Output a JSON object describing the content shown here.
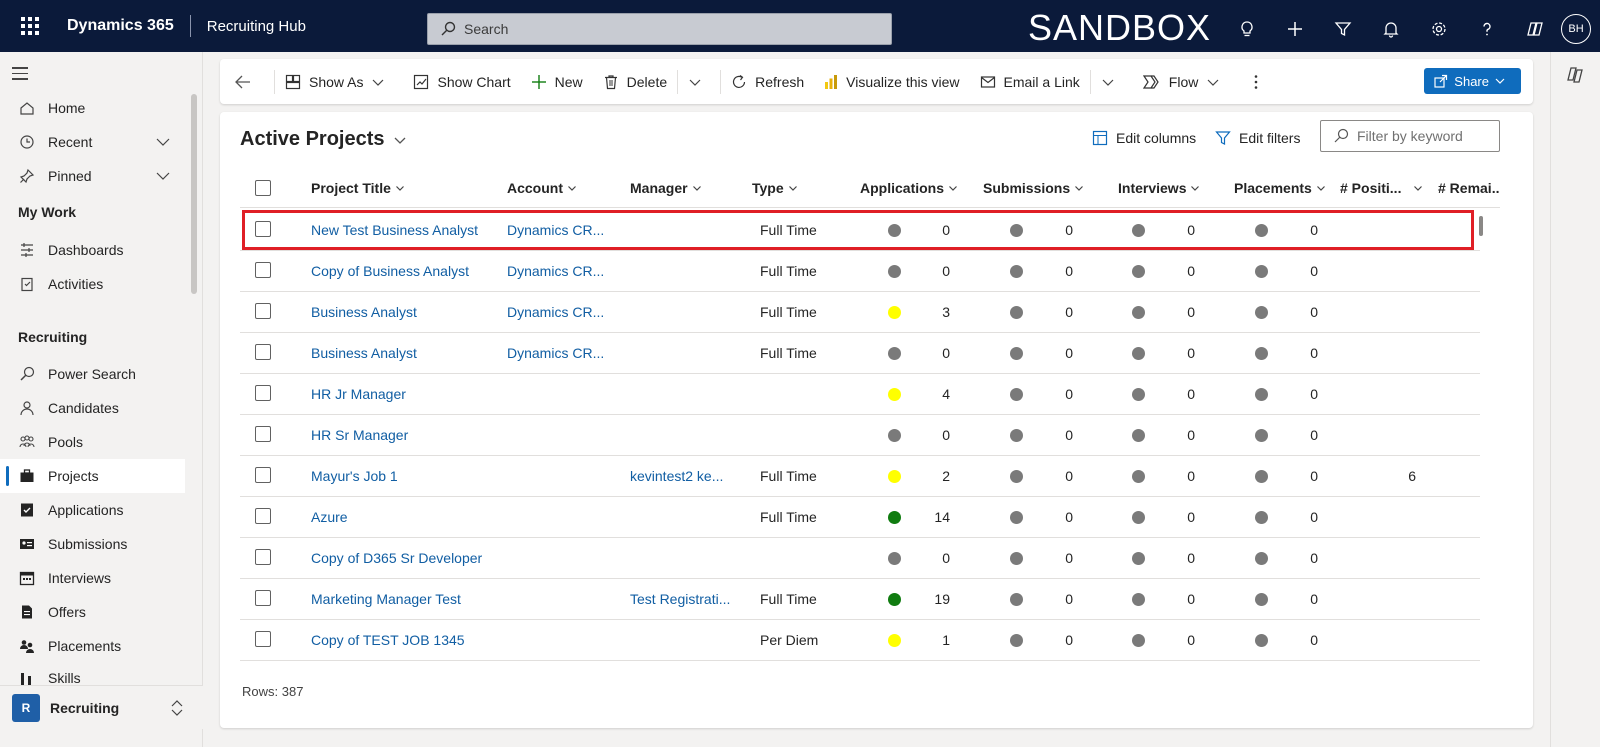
{
  "topbar": {
    "app_name": "Dynamics 365",
    "hub_name": "Recruiting Hub",
    "search_placeholder": "Search",
    "environment_label": "SANDBOX",
    "avatar_initials": "BH",
    "icons": [
      "lightbulb-icon",
      "plus-icon",
      "filter-icon",
      "bell-icon",
      "gear-icon",
      "help-icon",
      "copilot-icon"
    ]
  },
  "sidebar": {
    "items": [
      {
        "label": "Home",
        "icon": "home-icon"
      },
      {
        "label": "Recent",
        "icon": "clock-icon"
      },
      {
        "label": "Pinned",
        "icon": "pin-icon"
      }
    ],
    "sections": [
      {
        "title": "My Work",
        "items": [
          {
            "label": "Dashboards"
          },
          {
            "label": "Activities"
          }
        ]
      },
      {
        "title": "Recruiting",
        "items": [
          {
            "label": "Power Search"
          },
          {
            "label": "Candidates"
          },
          {
            "label": "Pools"
          },
          {
            "label": "Projects"
          },
          {
            "label": "Applications"
          },
          {
            "label": "Submissions"
          },
          {
            "label": "Interviews"
          },
          {
            "label": "Offers"
          },
          {
            "label": "Placements"
          },
          {
            "label": "Skills"
          }
        ]
      }
    ],
    "selected": "Projects",
    "area": {
      "badge": "R",
      "label": "Recruiting"
    }
  },
  "commandbar": {
    "show_as": "Show As",
    "show_chart": "Show Chart",
    "new": "New",
    "delete": "Delete",
    "refresh": "Refresh",
    "visualize": "Visualize this view",
    "email_link": "Email a Link",
    "flow": "Flow",
    "share": "Share"
  },
  "view": {
    "title": "Active Projects",
    "edit_columns": "Edit columns",
    "edit_filters": "Edit filters",
    "filter_placeholder": "Filter by keyword",
    "rows_label": "Rows: 387"
  },
  "colors": {
    "status_gray": "#7a7a7a",
    "status_yellow": "#ffff00",
    "status_green": "#107c10",
    "link": "#115ea3",
    "highlight": "#e01f26"
  },
  "grid": {
    "columns": [
      "Project Title",
      "Account",
      "Manager",
      "Type",
      "Applications",
      "Submissions",
      "Interviews",
      "Placements",
      "# Positi...",
      "# Remai..."
    ],
    "rows": [
      {
        "title": "New Test Business Analyst",
        "account": "Dynamics CR...",
        "manager": "",
        "type": "Full Time",
        "app_status": "gray",
        "applications": "0",
        "submissions": "0",
        "interviews": "0",
        "placements": "0",
        "positions": ""
      },
      {
        "title": "Copy of Business Analyst",
        "account": "Dynamics CR...",
        "manager": "",
        "type": "Full Time",
        "app_status": "gray",
        "applications": "0",
        "submissions": "0",
        "interviews": "0",
        "placements": "0",
        "positions": ""
      },
      {
        "title": "Business Analyst",
        "account": "Dynamics CR...",
        "manager": "",
        "type": "Full Time",
        "app_status": "yellow",
        "applications": "3",
        "submissions": "0",
        "interviews": "0",
        "placements": "0",
        "positions": ""
      },
      {
        "title": "Business Analyst",
        "account": "Dynamics CR...",
        "manager": "",
        "type": "Full Time",
        "app_status": "gray",
        "applications": "0",
        "submissions": "0",
        "interviews": "0",
        "placements": "0",
        "positions": ""
      },
      {
        "title": "HR Jr Manager",
        "account": "",
        "manager": "",
        "type": "",
        "app_status": "yellow",
        "applications": "4",
        "submissions": "0",
        "interviews": "0",
        "placements": "0",
        "positions": ""
      },
      {
        "title": "HR Sr Manager",
        "account": "",
        "manager": "",
        "type": "",
        "app_status": "gray",
        "applications": "0",
        "submissions": "0",
        "interviews": "0",
        "placements": "0",
        "positions": ""
      },
      {
        "title": "Mayur's Job 1",
        "account": "",
        "manager": "kevintest2 ke...",
        "type": "Full Time",
        "app_status": "yellow",
        "applications": "2",
        "submissions": "0",
        "interviews": "0",
        "placements": "0",
        "positions": "6"
      },
      {
        "title": "Azure",
        "account": "",
        "manager": "",
        "type": "Full Time",
        "app_status": "green",
        "applications": "14",
        "submissions": "0",
        "interviews": "0",
        "placements": "0",
        "positions": ""
      },
      {
        "title": "Copy of D365 Sr Developer",
        "account": "",
        "manager": "",
        "type": "",
        "app_status": "gray",
        "applications": "0",
        "submissions": "0",
        "interviews": "0",
        "placements": "0",
        "positions": ""
      },
      {
        "title": "Marketing Manager Test",
        "account": "",
        "manager": "Test Registrati...",
        "type": "Full Time",
        "app_status": "green",
        "applications": "19",
        "submissions": "0",
        "interviews": "0",
        "placements": "0",
        "positions": ""
      },
      {
        "title": "Copy of TEST JOB 1345",
        "account": "",
        "manager": "",
        "type": "Per Diem",
        "app_status": "yellow",
        "applications": "1",
        "submissions": "0",
        "interviews": "0",
        "placements": "0",
        "positions": ""
      }
    ]
  }
}
